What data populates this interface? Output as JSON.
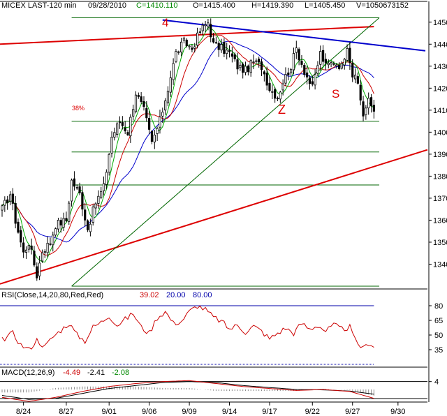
{
  "header": {
    "symbol": "MICEX LAST-120 min",
    "date": "09/28/2010",
    "close": "C=1410.110",
    "open": "O=1415.400",
    "high": "H=1419.390",
    "low": "L=1405.450",
    "volume": "V=1050673152"
  },
  "annotations": {
    "wave4": "4",
    "waveZ": "Z",
    "waveS": "S",
    "fib38": "38%"
  },
  "colors": {
    "price": "#000000",
    "ma_fast": "#00aa00",
    "ma_mid": "#cc0000",
    "ma_slow": "#0000cc",
    "trend_red": "#dd0000",
    "trend_blue": "#0000cc",
    "fib_green": "#006600",
    "osc_red": "#cc0000",
    "osc_blue": "#0000aa"
  },
  "chart_data": [
    {
      "type": "candlestick",
      "panel": "price",
      "ylim": [
        1330,
        1455
      ],
      "y_ticks": [
        1340,
        1350,
        1360,
        1370,
        1380,
        1390,
        1400,
        1410,
        1420,
        1430,
        1440,
        1450
      ],
      "x_tick_labels": [
        "8/24",
        "8/27",
        "9/01",
        "9/06",
        "9/09",
        "9/14",
        "9/17",
        "9/22",
        "9/27",
        "9/30"
      ],
      "x_tick_index": [
        8,
        24,
        40,
        55,
        70,
        85,
        100,
        116,
        131,
        148
      ],
      "n_bars": 140,
      "anchors_close": [
        [
          0,
          1365
        ],
        [
          3,
          1372
        ],
        [
          5,
          1360
        ],
        [
          8,
          1345
        ],
        [
          10,
          1350
        ],
        [
          13,
          1335
        ],
        [
          15,
          1346
        ],
        [
          18,
          1350
        ],
        [
          20,
          1358
        ],
        [
          24,
          1360
        ],
        [
          26,
          1378
        ],
        [
          29,
          1372
        ],
        [
          32,
          1356
        ],
        [
          35,
          1368
        ],
        [
          38,
          1375
        ],
        [
          41,
          1398
        ],
        [
          44,
          1405
        ],
        [
          47,
          1400
        ],
        [
          50,
          1418
        ],
        [
          53,
          1410
        ],
        [
          56,
          1395
        ],
        [
          59,
          1405
        ],
        [
          62,
          1420
        ],
        [
          65,
          1436
        ],
        [
          68,
          1441
        ],
        [
          71,
          1438
        ],
        [
          74,
          1446
        ],
        [
          77,
          1450
        ],
        [
          79,
          1440
        ],
        [
          82,
          1438
        ],
        [
          85,
          1436
        ],
        [
          88,
          1430
        ],
        [
          91,
          1428
        ],
        [
          94,
          1432
        ],
        [
          97,
          1430
        ],
        [
          100,
          1420
        ],
        [
          103,
          1416
        ],
        [
          105,
          1423
        ],
        [
          108,
          1430
        ],
        [
          110,
          1438
        ],
        [
          113,
          1428
        ],
        [
          116,
          1420
        ],
        [
          119,
          1436
        ],
        [
          121,
          1430
        ],
        [
          124,
          1432
        ],
        [
          127,
          1430
        ],
        [
          129,
          1440
        ],
        [
          131,
          1426
        ],
        [
          133,
          1422
        ],
        [
          135,
          1408
        ],
        [
          137,
          1414
        ],
        [
          139,
          1410
        ]
      ],
      "fib_levels": [
        1405,
        1391,
        1376,
        1330
      ],
      "fib_label": "38%"
    },
    {
      "type": "line",
      "panel": "rsi",
      "title": "RSI(Close,14,20,80,Red,Red)",
      "values_label": [
        "39.02",
        "20.00",
        "80.00"
      ],
      "ylim": [
        20,
        85
      ],
      "y_ticks": [
        35,
        50,
        65,
        80
      ],
      "levels": [
        20,
        80
      ],
      "anchors": [
        [
          0,
          45
        ],
        [
          4,
          52
        ],
        [
          7,
          40
        ],
        [
          10,
          35
        ],
        [
          13,
          45
        ],
        [
          16,
          38
        ],
        [
          19,
          48
        ],
        [
          22,
          55
        ],
        [
          25,
          62
        ],
        [
          28,
          50
        ],
        [
          31,
          44
        ],
        [
          34,
          58
        ],
        [
          37,
          63
        ],
        [
          40,
          70
        ],
        [
          43,
          60
        ],
        [
          46,
          66
        ],
        [
          49,
          72
        ],
        [
          52,
          58
        ],
        [
          55,
          52
        ],
        [
          58,
          68
        ],
        [
          61,
          74
        ],
        [
          64,
          62
        ],
        [
          67,
          64
        ],
        [
          70,
          74
        ],
        [
          73,
          80
        ],
        [
          76,
          76
        ],
        [
          79,
          68
        ],
        [
          82,
          64
        ],
        [
          85,
          56
        ],
        [
          88,
          60
        ],
        [
          91,
          53
        ],
        [
          94,
          59
        ],
        [
          97,
          54
        ],
        [
          100,
          46
        ],
        [
          103,
          52
        ],
        [
          106,
          57
        ],
        [
          109,
          52
        ],
        [
          112,
          62
        ],
        [
          115,
          56
        ],
        [
          118,
          60
        ],
        [
          121,
          54
        ],
        [
          124,
          60
        ],
        [
          127,
          56
        ],
        [
          130,
          58
        ],
        [
          132,
          44
        ],
        [
          135,
          36
        ],
        [
          137,
          42
        ],
        [
          139,
          39
        ]
      ]
    },
    {
      "type": "line",
      "panel": "macd",
      "title": "MACD(12,26,9)",
      "values_label": [
        "-4.49",
        "-2.41",
        "-2.08"
      ],
      "ylim": [
        -6,
        6
      ],
      "y_ticks": [
        4
      ],
      "anchors_macd": [
        [
          0,
          -4
        ],
        [
          10,
          -6
        ],
        [
          20,
          -4
        ],
        [
          30,
          -1
        ],
        [
          40,
          1.5
        ],
        [
          50,
          3
        ],
        [
          60,
          4
        ],
        [
          70,
          4.5
        ],
        [
          80,
          3
        ],
        [
          90,
          1.5
        ],
        [
          100,
          0.5
        ],
        [
          110,
          -0.5
        ],
        [
          120,
          0
        ],
        [
          130,
          -1
        ],
        [
          139,
          -4.49
        ]
      ],
      "anchors_signal": [
        [
          0,
          -3
        ],
        [
          10,
          -5
        ],
        [
          20,
          -4.5
        ],
        [
          30,
          -2
        ],
        [
          40,
          0.5
        ],
        [
          50,
          2
        ],
        [
          60,
          3.5
        ],
        [
          70,
          4
        ],
        [
          80,
          3.5
        ],
        [
          90,
          2
        ],
        [
          100,
          1
        ],
        [
          110,
          0
        ],
        [
          120,
          -0.2
        ],
        [
          130,
          -0.8
        ],
        [
          139,
          -2.41
        ]
      ]
    }
  ]
}
